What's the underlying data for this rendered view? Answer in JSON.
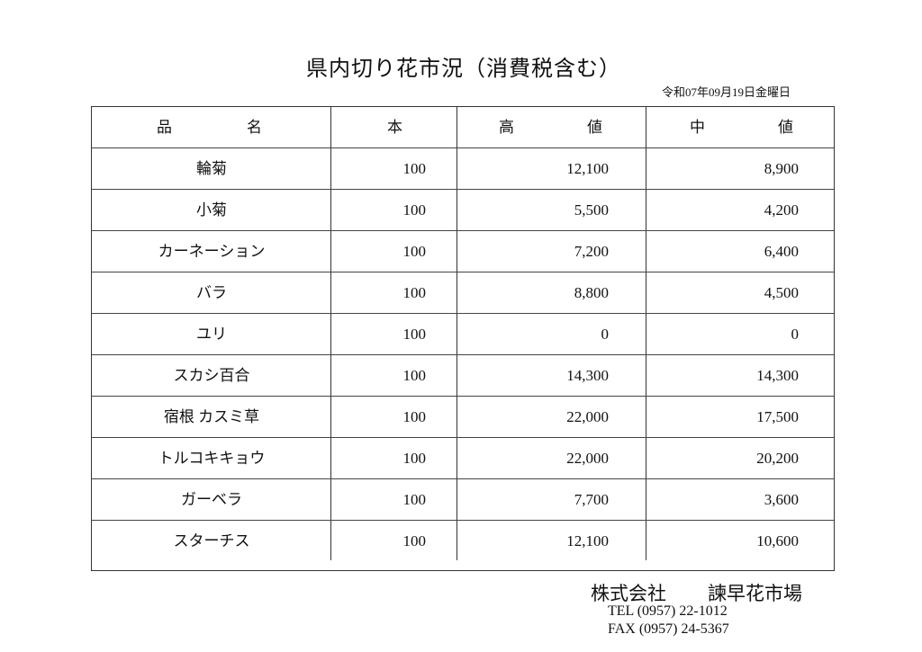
{
  "title": "県内切り花市況（消費税含む）",
  "date": "令和07年09月19日金曜日",
  "headers": {
    "name_a": "品",
    "name_b": "名",
    "qty": "本",
    "high_a": "高",
    "high_b": "値",
    "mid_a": "中",
    "mid_b": "値"
  },
  "rows": [
    {
      "name": "輪菊",
      "qty": "100",
      "high": "12,100",
      "mid": "8,900"
    },
    {
      "name": "小菊",
      "qty": "100",
      "high": "5,500",
      "mid": "4,200"
    },
    {
      "name": "カーネーション",
      "qty": "100",
      "high": "7,200",
      "mid": "6,400"
    },
    {
      "name": "バラ",
      "qty": "100",
      "high": "8,800",
      "mid": "4,500"
    },
    {
      "name": "ユリ",
      "qty": "100",
      "high": "0",
      "mid": "0"
    },
    {
      "name": "スカシ百合",
      "qty": "100",
      "high": "14,300",
      "mid": "14,300"
    },
    {
      "name": "宿根 カスミ草",
      "qty": "100",
      "high": "22,000",
      "mid": "17,500"
    },
    {
      "name": "トルコキキョウ",
      "qty": "100",
      "high": "22,000",
      "mid": "20,200"
    },
    {
      "name": "ガーベラ",
      "qty": "100",
      "high": "7,700",
      "mid": "3,600"
    },
    {
      "name": "スターチス",
      "qty": "100",
      "high": "12,100",
      "mid": "10,600"
    }
  ],
  "footer": {
    "company": "株式会社",
    "market": "諫早花市場",
    "tel": "TEL (0957) 22-1012",
    "fax": "FAX (0957) 24-5367"
  }
}
